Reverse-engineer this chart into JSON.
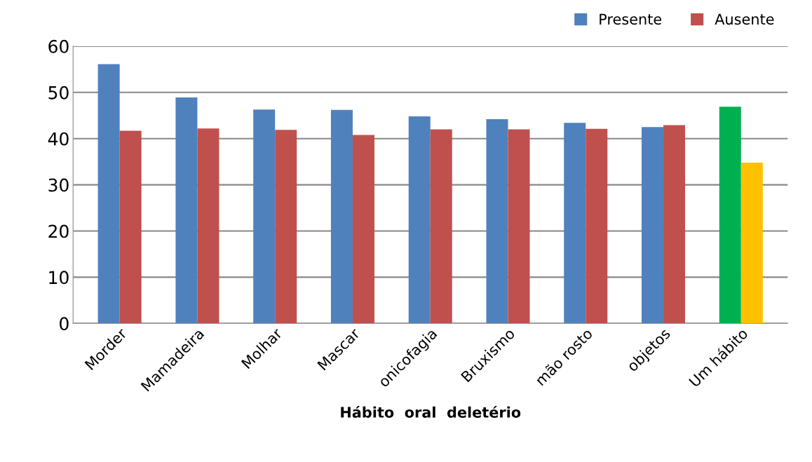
{
  "chart_data": {
    "type": "bar",
    "xlabel": "Hábito  oral  deletério",
    "categories": [
      "Morder",
      "Mamadeira",
      "Molhar",
      "Mascar",
      "onicofagia",
      "Bruxismo",
      "mão rosto",
      "objetos",
      "Um hábito"
    ],
    "series": [
      {
        "name": "Presente",
        "color": "#4f81bd",
        "colors": [
          "#4f81bd",
          "#4f81bd",
          "#4f81bd",
          "#4f81bd",
          "#4f81bd",
          "#4f81bd",
          "#4f81bd",
          "#4f81bd",
          "#00b050"
        ],
        "values": [
          56.1,
          48.9,
          46.3,
          46.2,
          44.8,
          44.2,
          43.4,
          42.5,
          46.9
        ]
      },
      {
        "name": "Ausente",
        "color": "#c0504d",
        "colors": [
          "#c0504d",
          "#c0504d",
          "#c0504d",
          "#c0504d",
          "#c0504d",
          "#c0504d",
          "#c0504d",
          "#c0504d",
          "#ffc000"
        ],
        "values": [
          41.7,
          42.2,
          41.9,
          40.8,
          42.0,
          42.0,
          42.1,
          42.9,
          34.8
        ]
      }
    ],
    "ylim": [
      0,
      60
    ],
    "yticks": [
      0,
      10,
      20,
      30,
      40,
      50,
      60
    ],
    "grid": "y",
    "legend": "top right"
  }
}
